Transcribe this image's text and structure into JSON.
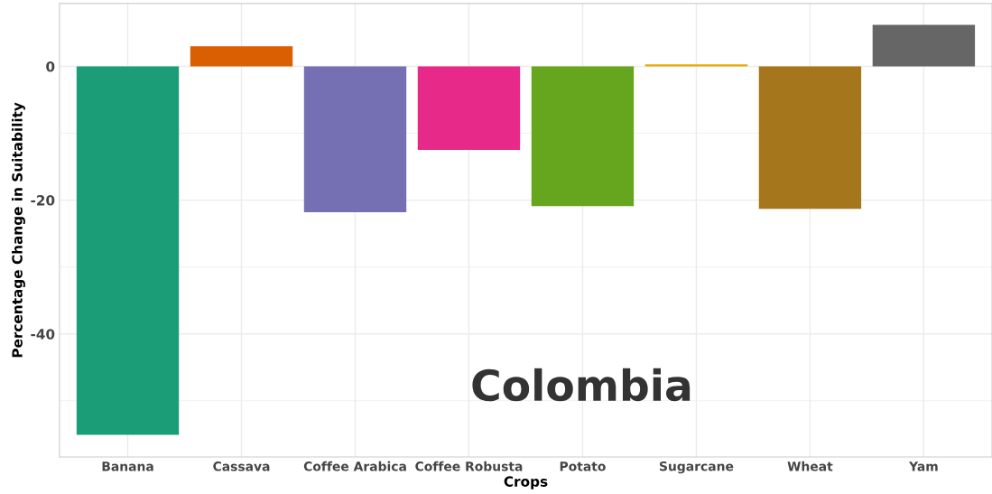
{
  "chart_data": {
    "type": "bar",
    "xlabel": "Crops",
    "ylabel": "Percentage Change in Suitability",
    "categories": [
      "Banana",
      "Cassava",
      "Coffee Arabica",
      "Coffee Robusta",
      "Potato",
      "Sugarcane",
      "Wheat",
      "Yam"
    ],
    "values": [
      -55.1,
      3.0,
      -21.8,
      -12.5,
      -20.9,
      0.3,
      -21.3,
      6.2
    ],
    "colors": [
      "#1b9e77",
      "#d95f02",
      "#7570b3",
      "#e7298a",
      "#66a61e",
      "#e6ab02",
      "#a6761d",
      "#666666"
    ],
    "ylim": [
      -58.4,
      9.4
    ],
    "yticks": [
      {
        "value": -50,
        "label": null
      },
      -40,
      {
        "value": -30,
        "label": null
      },
      -20,
      {
        "value": -10,
        "label": null
      },
      0
    ],
    "grid": true,
    "annotations": [
      "Colombia"
    ]
  }
}
